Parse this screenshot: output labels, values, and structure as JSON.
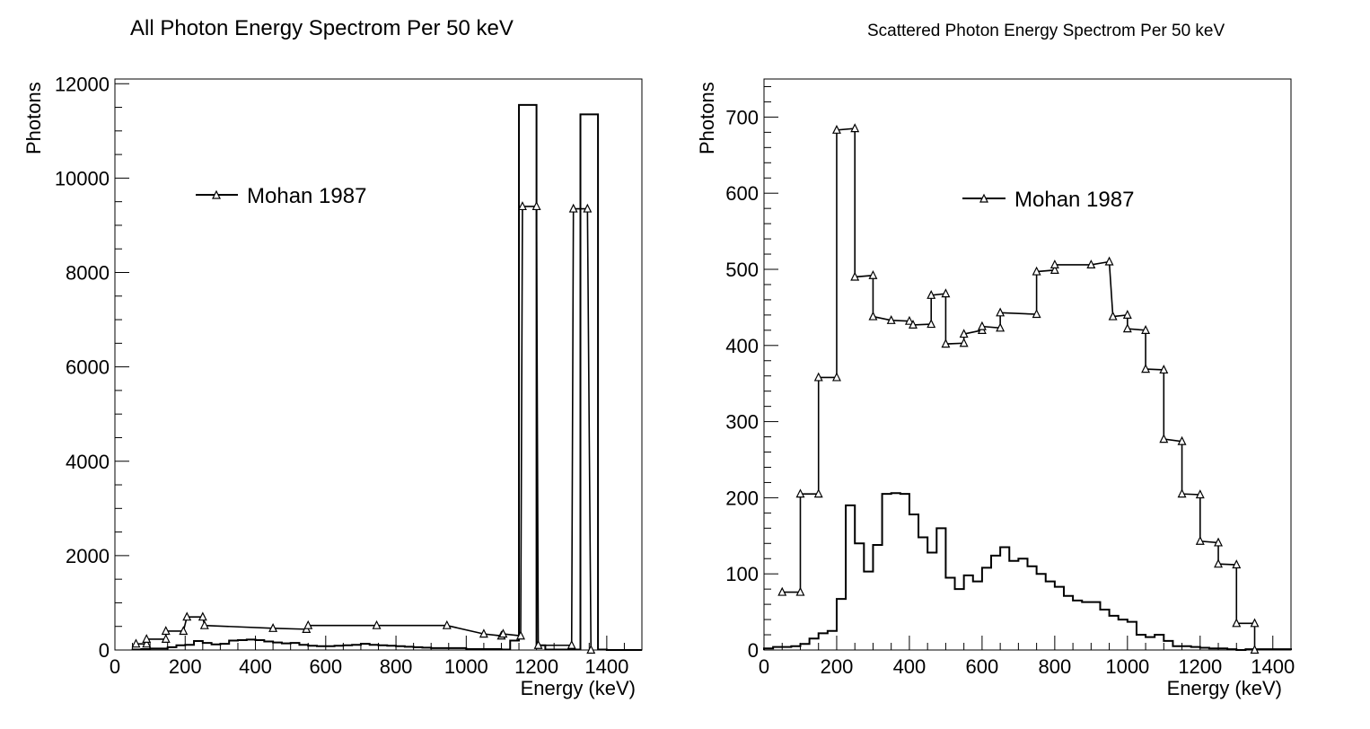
{
  "panels": {
    "left": {
      "title": "All Photon Energy Spectrom Per 50 keV",
      "xlabel": "Energy (keV)",
      "ylabel": "Photons",
      "legend_label": "Mohan 1987",
      "x_ticks": [
        "0",
        "200",
        "400",
        "600",
        "800",
        "1000",
        "1200",
        "1400"
      ],
      "y_ticks": [
        "0",
        "2000",
        "4000",
        "6000",
        "8000",
        "10000",
        "12000"
      ]
    },
    "right": {
      "title": "Scattered Photon Energy Spectrom Per 50 keV",
      "xlabel": "Energy (keV)",
      "ylabel": "Photons",
      "legend_label": "Mohan 1987",
      "x_ticks": [
        "0",
        "200",
        "400",
        "600",
        "800",
        "1000",
        "1200",
        "1400"
      ],
      "y_ticks": [
        "0",
        "100",
        "200",
        "300",
        "400",
        "500",
        "600",
        "700"
      ]
    }
  },
  "chart_data": [
    {
      "type": "line",
      "title": "All Photon Energy Spectrom Per 50 keV",
      "xlabel": "Energy (keV)",
      "ylabel": "Photons",
      "xlim": [
        0,
        1500
      ],
      "ylim": [
        0,
        12100
      ],
      "legend": "upper-left",
      "series": [
        {
          "name": "",
          "style": "histogram",
          "bin_width": 25,
          "x": [
            50,
            75,
            100,
            125,
            150,
            175,
            200,
            225,
            250,
            275,
            300,
            325,
            350,
            375,
            400,
            425,
            450,
            475,
            500,
            525,
            550,
            575,
            600,
            625,
            650,
            675,
            700,
            725,
            750,
            775,
            800,
            825,
            850,
            875,
            900,
            925,
            950,
            975,
            1000,
            1025,
            1050,
            1075,
            1100,
            1125,
            1150,
            1175,
            1200,
            1225,
            1250,
            1275,
            1300,
            1325,
            1350,
            1375,
            1400,
            1425,
            1450,
            1475
          ],
          "values": [
            10,
            20,
            30,
            30,
            60,
            100,
            110,
            190,
            150,
            120,
            130,
            200,
            210,
            220,
            210,
            180,
            160,
            140,
            150,
            110,
            90,
            80,
            80,
            90,
            100,
            110,
            130,
            110,
            100,
            90,
            80,
            70,
            60,
            50,
            40,
            40,
            40,
            40,
            20,
            20,
            20,
            20,
            10,
            200,
            11550,
            11550,
            100,
            10,
            10,
            10,
            10,
            11350,
            11350,
            10,
            0,
            0,
            0,
            0
          ]
        },
        {
          "name": "Mohan 1987",
          "marker": "open-triangle",
          "x": [
            60,
            90,
            90,
            145,
            145,
            195,
            205,
            250,
            255,
            450,
            545,
            550,
            745,
            945,
            1050,
            1100,
            1105,
            1155,
            1160,
            1200,
            1205,
            1300,
            1305,
            1345,
            1355
          ],
          "values": [
            130,
            130,
            230,
            230,
            400,
            400,
            700,
            700,
            520,
            460,
            440,
            520,
            520,
            520,
            340,
            300,
            340,
            300,
            9400,
            9400,
            100,
            100,
            9350,
            9350,
            0
          ]
        }
      ]
    },
    {
      "type": "line",
      "title": "Scattered Photon Energy Spectrom Per 50 keV",
      "xlabel": "Energy (keV)",
      "ylabel": "Photons",
      "xlim": [
        0,
        1450
      ],
      "ylim": [
        0,
        750
      ],
      "legend": "upper-center",
      "series": [
        {
          "name": "",
          "style": "histogram",
          "bin_width": 25,
          "x": [
            0,
            25,
            50,
            75,
            100,
            125,
            150,
            175,
            200,
            225,
            250,
            275,
            300,
            325,
            350,
            375,
            400,
            425,
            450,
            475,
            500,
            525,
            550,
            575,
            600,
            625,
            650,
            675,
            700,
            725,
            750,
            775,
            800,
            825,
            850,
            875,
            900,
            925,
            950,
            975,
            1000,
            1025,
            1050,
            1075,
            1100,
            1125,
            1150,
            1175,
            1200,
            1225,
            1250,
            1275,
            1300,
            1325,
            1350,
            1375,
            1400,
            1425
          ],
          "values": [
            2,
            4,
            4,
            5,
            8,
            15,
            22,
            25,
            67,
            190,
            140,
            103,
            138,
            205,
            206,
            205,
            178,
            148,
            128,
            160,
            95,
            80,
            98,
            90,
            108,
            124,
            135,
            117,
            120,
            110,
            100,
            90,
            83,
            71,
            65,
            63,
            63,
            53,
            45,
            40,
            37,
            20,
            17,
            20,
            12,
            5,
            5,
            4,
            3,
            2,
            2,
            1,
            0,
            1,
            1,
            1,
            1,
            1
          ]
        },
        {
          "name": "Mohan 1987",
          "marker": "open-triangle",
          "x": [
            50,
            100,
            100,
            150,
            150,
            200,
            200,
            250,
            250,
            300,
            300,
            350,
            400,
            410,
            460,
            460,
            500,
            500,
            550,
            550,
            600,
            600,
            650,
            650,
            750,
            750,
            800,
            800,
            900,
            950,
            960,
            1000,
            1000,
            1050,
            1050,
            1100,
            1100,
            1150,
            1150,
            1200,
            1200,
            1250,
            1250,
            1300,
            1300,
            1350,
            1350
          ],
          "values": [
            76,
            76,
            205,
            205,
            358,
            358,
            683,
            685,
            490,
            492,
            438,
            433,
            432,
            427,
            428,
            466,
            468,
            402,
            403,
            415,
            420,
            425,
            423,
            443,
            441,
            497,
            499,
            506,
            506,
            510,
            438,
            440,
            422,
            420,
            369,
            368,
            277,
            274,
            205,
            204,
            143,
            141,
            113,
            112,
            35,
            35,
            0
          ]
        }
      ]
    }
  ]
}
